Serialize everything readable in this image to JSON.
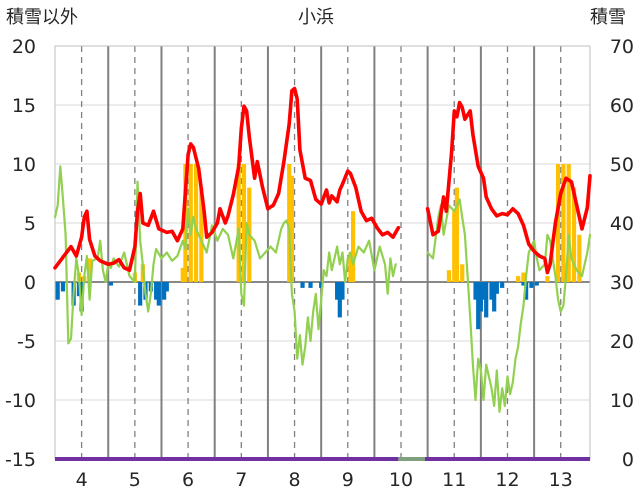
{
  "chart_data": {
    "type": "line",
    "title": "小浜",
    "left_axis_label": "積雪以外",
    "right_axis_label": "積雪",
    "left_ylim": [
      -15,
      20
    ],
    "right_ylim": [
      0,
      70
    ],
    "left_ticks": [
      20,
      15,
      10,
      5,
      0,
      -5,
      -10,
      -15
    ],
    "right_ticks": [
      70,
      60,
      50,
      40,
      30,
      20,
      10,
      0
    ],
    "month_labels": [
      "4",
      "5",
      "6",
      "7",
      "8",
      "9",
      "10",
      "11",
      "12",
      "13"
    ],
    "x_range": [
      3.5,
      13.55
    ],
    "vertical_dashed_at": [
      4,
      5,
      6,
      7,
      8,
      9,
      10,
      11,
      12,
      13
    ],
    "vertical_solid_at": [
      4.5,
      5.5,
      6.5,
      7.5,
      8.5,
      9.5,
      10.5,
      11.5,
      12.5
    ],
    "colors": {
      "red_series": "#ff0000",
      "green_series": "#92d050",
      "orange_bars": "#ffc000",
      "blue_bars": "#0070c0",
      "purple_baseline": "#7030a0",
      "gray_baseline": "#7f9f7f",
      "grid": "#808080"
    },
    "series": [
      {
        "color": "red",
        "axis": "left",
        "points": [
          [
            3.5,
            1.2
          ],
          [
            3.6,
            1.8
          ],
          [
            3.7,
            2.4
          ],
          [
            3.8,
            3.0
          ],
          [
            3.9,
            2.2
          ],
          [
            4.0,
            3.8
          ],
          [
            4.05,
            5.5
          ],
          [
            4.1,
            6.0
          ],
          [
            4.15,
            3.6
          ],
          [
            4.25,
            2.2
          ],
          [
            4.35,
            1.8
          ],
          [
            4.5,
            1.5
          ],
          [
            4.6,
            1.6
          ],
          [
            4.7,
            1.9
          ],
          [
            4.8,
            1.2
          ],
          [
            4.9,
            1.0
          ],
          [
            5.0,
            3.0
          ],
          [
            5.05,
            6.0
          ],
          [
            5.1,
            7.5
          ],
          [
            5.15,
            5.0
          ],
          [
            5.25,
            4.8
          ],
          [
            5.35,
            6.0
          ],
          [
            5.45,
            4.5
          ],
          [
            5.6,
            4.2
          ],
          [
            5.7,
            4.3
          ],
          [
            5.8,
            3.5
          ],
          [
            5.9,
            4.5
          ],
          [
            6.0,
            10.8
          ],
          [
            6.05,
            11.7
          ],
          [
            6.1,
            11.4
          ],
          [
            6.2,
            9.6
          ],
          [
            6.3,
            6.0
          ],
          [
            6.35,
            3.8
          ],
          [
            6.45,
            4.2
          ],
          [
            6.55,
            5.0
          ],
          [
            6.6,
            6.2
          ],
          [
            6.7,
            5.0
          ],
          [
            6.75,
            5.6
          ],
          [
            6.85,
            7.4
          ],
          [
            6.95,
            9.8
          ],
          [
            7.0,
            13.0
          ],
          [
            7.05,
            14.9
          ],
          [
            7.1,
            14.5
          ],
          [
            7.15,
            12.3
          ],
          [
            7.25,
            8.8
          ],
          [
            7.3,
            10.2
          ],
          [
            7.4,
            8.0
          ],
          [
            7.5,
            6.2
          ],
          [
            7.6,
            6.5
          ],
          [
            7.7,
            7.5
          ],
          [
            7.8,
            10.2
          ],
          [
            7.9,
            13.4
          ],
          [
            7.95,
            16.2
          ],
          [
            8.0,
            16.4
          ],
          [
            8.05,
            15.5
          ],
          [
            8.1,
            11.2
          ],
          [
            8.2,
            8.8
          ],
          [
            8.3,
            8.6
          ],
          [
            8.4,
            7.0
          ],
          [
            8.5,
            6.6
          ],
          [
            8.6,
            7.8
          ],
          [
            8.65,
            6.7
          ],
          [
            8.7,
            7.3
          ],
          [
            8.8,
            6.8
          ],
          [
            8.85,
            7.8
          ],
          [
            8.9,
            8.3
          ],
          [
            9.0,
            9.4
          ],
          [
            9.05,
            9.2
          ],
          [
            9.15,
            8.0
          ],
          [
            9.25,
            6.0
          ],
          [
            9.35,
            5.2
          ],
          [
            9.45,
            5.4
          ],
          [
            9.55,
            4.6
          ],
          [
            9.65,
            4.0
          ],
          [
            9.75,
            4.2
          ],
          [
            9.85,
            3.8
          ],
          [
            9.95,
            4.6
          ]
        ]
      },
      {
        "color": "red",
        "axis": "left",
        "points": [
          [
            10.5,
            6.2
          ],
          [
            10.6,
            4.0
          ],
          [
            10.7,
            4.3
          ],
          [
            10.8,
            7.2
          ],
          [
            10.85,
            6.0
          ],
          [
            10.95,
            11.0
          ],
          [
            11.0,
            14.5
          ],
          [
            11.05,
            14.0
          ],
          [
            11.1,
            15.2
          ],
          [
            11.15,
            14.8
          ],
          [
            11.2,
            13.8
          ],
          [
            11.3,
            14.5
          ],
          [
            11.35,
            12.5
          ],
          [
            11.45,
            9.8
          ],
          [
            11.55,
            8.8
          ],
          [
            11.6,
            7.2
          ],
          [
            11.7,
            6.2
          ],
          [
            11.8,
            5.6
          ],
          [
            11.9,
            5.8
          ],
          [
            12.0,
            5.7
          ],
          [
            12.1,
            6.2
          ],
          [
            12.2,
            5.8
          ],
          [
            12.3,
            4.8
          ],
          [
            12.4,
            3.2
          ],
          [
            12.5,
            2.6
          ],
          [
            12.6,
            2.2
          ],
          [
            12.7,
            2.0
          ],
          [
            12.75,
            0.8
          ],
          [
            12.8,
            1.5
          ],
          [
            12.9,
            5.0
          ],
          [
            13.0,
            7.5
          ],
          [
            13.1,
            8.8
          ],
          [
            13.2,
            8.5
          ],
          [
            13.3,
            6.5
          ],
          [
            13.4,
            4.5
          ],
          [
            13.5,
            6.3
          ],
          [
            13.55,
            9.0
          ]
        ]
      },
      {
        "color": "green",
        "axis": "left",
        "points": [
          [
            3.5,
            5.5
          ],
          [
            3.55,
            6.5
          ],
          [
            3.6,
            9.8
          ],
          [
            3.65,
            7.0
          ],
          [
            3.7,
            4.0
          ],
          [
            3.75,
            -5.2
          ],
          [
            3.8,
            -4.8
          ],
          [
            3.85,
            -1.0
          ],
          [
            3.9,
            2.0
          ],
          [
            3.95,
            0.5
          ],
          [
            4.0,
            -2.8
          ],
          [
            4.05,
            0.5
          ],
          [
            4.1,
            2.2
          ],
          [
            4.15,
            -1.5
          ],
          [
            4.2,
            1.8
          ],
          [
            4.3,
            2.0
          ],
          [
            4.35,
            3.5
          ],
          [
            4.4,
            1.0
          ],
          [
            4.45,
            0.0
          ],
          [
            4.5,
            1.5
          ],
          [
            4.55,
            1.2
          ],
          [
            4.6,
            2.0
          ],
          [
            4.7,
            1.3
          ],
          [
            4.8,
            2.5
          ],
          [
            4.9,
            0.5
          ],
          [
            5.0,
            0.0
          ],
          [
            5.05,
            8.5
          ],
          [
            5.1,
            3.5
          ],
          [
            5.15,
            1.5
          ],
          [
            5.2,
            -1.0
          ],
          [
            5.25,
            -2.5
          ],
          [
            5.3,
            -1.0
          ],
          [
            5.35,
            1.5
          ],
          [
            5.4,
            2.8
          ],
          [
            5.5,
            2.0
          ],
          [
            5.6,
            2.5
          ],
          [
            5.7,
            1.8
          ],
          [
            5.8,
            2.2
          ],
          [
            5.9,
            3.5
          ],
          [
            5.95,
            2.8
          ],
          [
            6.0,
            6.2
          ],
          [
            6.05,
            4.0
          ],
          [
            6.1,
            5.5
          ],
          [
            6.15,
            4.5
          ],
          [
            6.25,
            3.5
          ],
          [
            6.35,
            2.5
          ],
          [
            6.45,
            4.8
          ],
          [
            6.55,
            3.5
          ],
          [
            6.65,
            4.5
          ],
          [
            6.75,
            4.0
          ],
          [
            6.85,
            2.0
          ],
          [
            6.95,
            4.5
          ],
          [
            7.0,
            -1.0
          ],
          [
            7.05,
            -2.0
          ],
          [
            7.1,
            5.0
          ],
          [
            7.15,
            4.0
          ],
          [
            7.25,
            3.5
          ],
          [
            7.35,
            2.0
          ],
          [
            7.45,
            2.5
          ],
          [
            7.55,
            3.0
          ],
          [
            7.65,
            2.5
          ],
          [
            7.75,
            4.5
          ],
          [
            7.8,
            5.0
          ],
          [
            7.85,
            5.2
          ],
          [
            7.9,
            4.5
          ],
          [
            7.95,
            -1.0
          ],
          [
            8.0,
            -2.5
          ],
          [
            8.05,
            -6.5
          ],
          [
            8.1,
            -4.5
          ],
          [
            8.15,
            -7.0
          ],
          [
            8.2,
            -5.5
          ],
          [
            8.25,
            -3.0
          ],
          [
            8.3,
            -5.0
          ],
          [
            8.35,
            -2.5
          ],
          [
            8.4,
            -1.0
          ],
          [
            8.45,
            -4.0
          ],
          [
            8.5,
            -1.5
          ],
          [
            8.55,
            1.0
          ],
          [
            8.6,
            0.5
          ],
          [
            8.65,
            2.5
          ],
          [
            8.7,
            1.0
          ],
          [
            8.75,
            2.0
          ],
          [
            8.8,
            3.0
          ],
          [
            8.85,
            1.5
          ],
          [
            8.9,
            2.5
          ],
          [
            8.95,
            0.0
          ],
          [
            9.0,
            2.0
          ],
          [
            9.05,
            2.5
          ],
          [
            9.1,
            1.5
          ],
          [
            9.2,
            3.0
          ],
          [
            9.3,
            2.5
          ],
          [
            9.4,
            3.5
          ],
          [
            9.5,
            1.0
          ],
          [
            9.6,
            3.0
          ],
          [
            9.7,
            1.5
          ],
          [
            9.75,
            -1.0
          ],
          [
            9.8,
            2.0
          ],
          [
            9.85,
            0.5
          ],
          [
            9.9,
            1.5
          ]
        ]
      },
      {
        "color": "green",
        "axis": "left",
        "points": [
          [
            10.5,
            2.5
          ],
          [
            10.6,
            2.0
          ],
          [
            10.7,
            5.5
          ],
          [
            10.75,
            6.5
          ],
          [
            10.8,
            4.0
          ],
          [
            10.9,
            6.5
          ],
          [
            11.0,
            6.0
          ],
          [
            11.1,
            7.0
          ],
          [
            11.15,
            5.5
          ],
          [
            11.2,
            4.0
          ],
          [
            11.25,
            0.5
          ],
          [
            11.3,
            -3.0
          ],
          [
            11.35,
            -7.0
          ],
          [
            11.4,
            -10.0
          ],
          [
            11.45,
            -6.5
          ],
          [
            11.5,
            -7.5
          ],
          [
            11.55,
            -10.0
          ],
          [
            11.6,
            -7.0
          ],
          [
            11.7,
            -9.0
          ],
          [
            11.75,
            -10.5
          ],
          [
            11.8,
            -7.5
          ],
          [
            11.85,
            -11.0
          ],
          [
            11.9,
            -9.0
          ],
          [
            11.95,
            -10.5
          ],
          [
            12.0,
            -8.0
          ],
          [
            12.05,
            -9.5
          ],
          [
            12.1,
            -8.5
          ],
          [
            12.15,
            -6.5
          ],
          [
            12.2,
            -5.5
          ],
          [
            12.25,
            -3.5
          ],
          [
            12.3,
            -2.0
          ],
          [
            12.35,
            0.5
          ],
          [
            12.4,
            2.5
          ],
          [
            12.5,
            3.5
          ],
          [
            12.55,
            2.0
          ],
          [
            12.6,
            1.0
          ],
          [
            12.7,
            1.5
          ],
          [
            12.75,
            4.0
          ],
          [
            12.8,
            3.5
          ],
          [
            12.85,
            2.0
          ],
          [
            12.9,
            0.5
          ],
          [
            12.95,
            -1.5
          ],
          [
            13.0,
            -2.5
          ],
          [
            13.05,
            -2.0
          ],
          [
            13.1,
            0.5
          ],
          [
            13.15,
            4.0
          ],
          [
            13.2,
            2.0
          ],
          [
            13.3,
            1.0
          ],
          [
            13.4,
            0.5
          ],
          [
            13.5,
            2.5
          ],
          [
            13.55,
            4.0
          ]
        ]
      }
    ],
    "bars_orange": [
      [
        3.95,
        0.8
      ],
      [
        4.05,
        0.5
      ],
      [
        4.15,
        2.0
      ],
      [
        5.0,
        0.8
      ],
      [
        5.15,
        1.5
      ],
      [
        5.9,
        1.2
      ],
      [
        5.95,
        10.0
      ],
      [
        6.05,
        10.0
      ],
      [
        6.15,
        10.0
      ],
      [
        6.25,
        8.0
      ],
      [
        6.95,
        10.0
      ],
      [
        7.05,
        10.0
      ],
      [
        7.15,
        8.0
      ],
      [
        7.9,
        10.0
      ],
      [
        7.95,
        9.0
      ],
      [
        9.05,
        2.5
      ],
      [
        9.1,
        6.0
      ],
      [
        10.9,
        1.0
      ],
      [
        11.0,
        6.0
      ],
      [
        11.05,
        8.0
      ],
      [
        11.15,
        1.5
      ],
      [
        12.2,
        0.5
      ],
      [
        12.3,
        0.8
      ],
      [
        12.75,
        0.5
      ],
      [
        12.95,
        10.0
      ],
      [
        13.05,
        10.0
      ],
      [
        13.15,
        10.0
      ],
      [
        13.25,
        8.0
      ],
      [
        13.35,
        4.0
      ]
    ],
    "bars_blue": [
      [
        3.55,
        -1.5
      ],
      [
        3.65,
        -0.8
      ],
      [
        3.85,
        -2.0
      ],
      [
        3.95,
        -1.2
      ],
      [
        4.0,
        -2.5
      ],
      [
        4.55,
        -0.3
      ],
      [
        5.1,
        -2.0
      ],
      [
        5.2,
        -1.5
      ],
      [
        5.3,
        -0.8
      ],
      [
        5.4,
        -1.5
      ],
      [
        5.45,
        -2.0
      ],
      [
        5.55,
        -1.5
      ],
      [
        5.6,
        -0.8
      ],
      [
        8.15,
        -0.5
      ],
      [
        8.3,
        -0.5
      ],
      [
        8.5,
        -0.5
      ],
      [
        8.8,
        -1.5
      ],
      [
        8.85,
        -3.0
      ],
      [
        8.9,
        -1.5
      ],
      [
        11.4,
        -1.5
      ],
      [
        11.45,
        -4.0
      ],
      [
        11.5,
        -2.5
      ],
      [
        11.55,
        -1.5
      ],
      [
        11.6,
        -3.0
      ],
      [
        11.7,
        -1.5
      ],
      [
        11.75,
        -2.5
      ],
      [
        11.8,
        -1.0
      ],
      [
        11.9,
        -0.5
      ],
      [
        12.3,
        -0.3
      ],
      [
        12.35,
        -1.5
      ],
      [
        12.45,
        -0.5
      ],
      [
        12.55,
        -0.3
      ]
    ]
  }
}
